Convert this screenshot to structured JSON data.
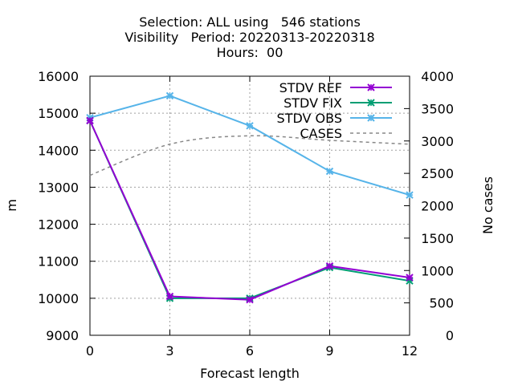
{
  "chart_data": {
    "type": "line",
    "title": [
      "Selection: ALL using   546 stations",
      "Visibility   Period: 20220313-20220318",
      "Hours:  00"
    ],
    "xlabel": "Forecast length",
    "ylabel": "m",
    "y2label": "No cases",
    "x": [
      0,
      3,
      6,
      9,
      12
    ],
    "xlim": [
      0,
      12
    ],
    "ylim": [
      9000,
      16000
    ],
    "y2lim": [
      0,
      4000
    ],
    "xticks": [
      "0",
      "3",
      "6",
      "9",
      "12"
    ],
    "yticks": [
      "9000",
      "10000",
      "11000",
      "12000",
      "13000",
      "14000",
      "15000",
      "16000"
    ],
    "y2ticks": [
      "0",
      "500",
      "1000",
      "1500",
      "2000",
      "2500",
      "3000",
      "3500",
      "4000"
    ],
    "grid": true,
    "legend_position": "top-right",
    "series": [
      {
        "name": "STDV REF",
        "axis": "y",
        "values": [
          14800,
          10050,
          9960,
          10870,
          10560
        ],
        "color": "#9400d3",
        "style": "solid",
        "marker": "x"
      },
      {
        "name": "STDV FIX",
        "axis": "y",
        "values": [
          14800,
          10000,
          10000,
          10830,
          10470
        ],
        "color": "#009e73",
        "style": "solid",
        "marker": "x"
      },
      {
        "name": "STDV OBS",
        "axis": "y",
        "values": [
          14880,
          15470,
          14660,
          13430,
          12790
        ],
        "color": "#56b4e9",
        "style": "solid",
        "marker": "x"
      },
      {
        "name": "CASES",
        "axis": "y2",
        "values": [
          2470,
          2950,
          3080,
          3010,
          2950
        ],
        "color": "#888888",
        "style": "dashed",
        "marker": "none"
      }
    ]
  }
}
